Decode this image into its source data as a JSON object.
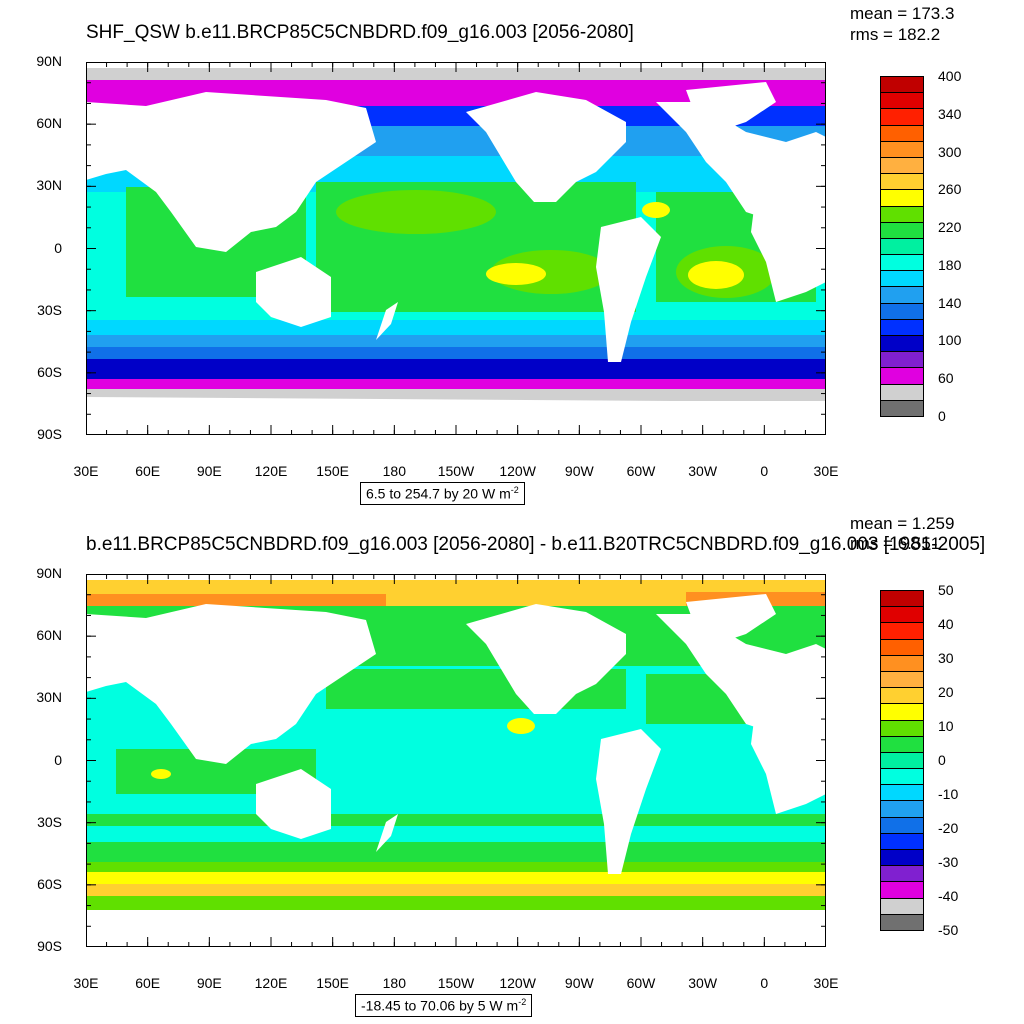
{
  "top": {
    "title": "SHF_QSW b.e11.BRCP85C5CNBDRD.f09_g16.003 [2056-2080]",
    "mean": "mean = 173.3",
    "rms": "rms = 182.2",
    "info_prefix": "6.5 to 254.7 by 20  W m",
    "info_exp": "-2",
    "colorbar": {
      "colors": [
        "#c00000",
        "#e00000",
        "#ff2000",
        "#ff6000",
        "#ff9020",
        "#ffb040",
        "#ffd030",
        "#ffff00",
        "#60e000",
        "#20e040",
        "#00f0a0",
        "#00ffe0",
        "#00d8ff",
        "#20a0f0",
        "#1070e8",
        "#0030ff",
        "#0000c8",
        "#8020d0",
        "#e000e0",
        "#d0d0d0",
        "#707070"
      ],
      "labels": [
        "400",
        "340",
        "300",
        "260",
        "220",
        "180",
        "140",
        "100",
        "60",
        "0"
      ]
    }
  },
  "bottom": {
    "title": "b.e11.BRCP85C5CNBDRD.f09_g16.003 [2056-2080] - b.e11.B20TRC5CNBDRD.f09_g16.003 [1981-2005]",
    "mean": "mean = 1.259",
    "rms": "rms = 6.551",
    "info_prefix": "-18.45 to 70.06 by 5  W m",
    "info_exp": "-2",
    "colorbar": {
      "colors": [
        "#c00000",
        "#e00000",
        "#ff2000",
        "#ff6000",
        "#ff9020",
        "#ffb040",
        "#ffd030",
        "#ffff00",
        "#60e000",
        "#20e040",
        "#00f0a0",
        "#00ffe0",
        "#00d8ff",
        "#20a0f0",
        "#1070e8",
        "#0030ff",
        "#0000c8",
        "#8020d0",
        "#e000e0",
        "#d0d0d0",
        "#707070"
      ],
      "labels": [
        "50",
        "40",
        "30",
        "20",
        "10",
        "0",
        "-10",
        "-20",
        "-30",
        "-40",
        "-50"
      ]
    }
  },
  "axes": {
    "lat_labels": [
      "90N",
      "60N",
      "30N",
      "0",
      "30S",
      "60S",
      "90S"
    ],
    "lon_labels": [
      "30E",
      "60E",
      "90E",
      "120E",
      "150E",
      "180",
      "150W",
      "120W",
      "90W",
      "60W",
      "30W",
      "0",
      "30E"
    ]
  }
}
